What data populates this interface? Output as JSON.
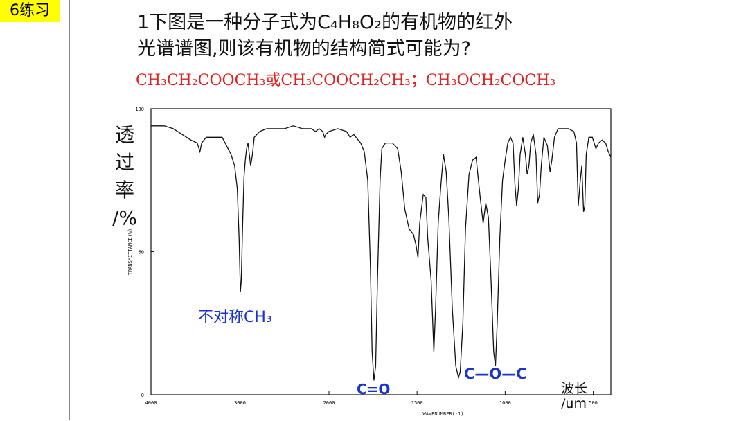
{
  "slide": {
    "tag": "6练习",
    "question_line1": "1下图是一种分子式为C₄H₈O₂的有机物的红外",
    "question_line2": "光谱谱图,则该有机物的结构简式可能为?",
    "answer": "CH₃CH₂COOCH₃或CH₃COOCH₂CH₃；CH₃OCH₂COCH₃",
    "y_label_cn": [
      "透",
      "过",
      "率",
      "/%"
    ],
    "x_label_cn": [
      "波长",
      "/um"
    ]
  },
  "annotations": {
    "ch3": "不对称CH₃",
    "c_eq_o": "C=O",
    "c_o_c": "C—O—C"
  },
  "chart_data": {
    "type": "line",
    "xlabel": "WAVENUMBER(-1)",
    "ylabel": "TRANSMITTANCE(%)",
    "xlim": [
      4000,
      400
    ],
    "ylim": [
      0,
      100
    ],
    "x_ticks": [
      4000,
      3000,
      2000,
      1500,
      1000,
      500
    ],
    "y_ticks": [
      0,
      50,
      100
    ],
    "grid": false,
    "series": [
      {
        "values": [
          [
            4000,
            94
          ],
          [
            3850,
            94
          ],
          [
            3750,
            93
          ],
          [
            3650,
            91
          ],
          [
            3550,
            89
          ],
          [
            3480,
            88
          ],
          [
            3450,
            85
          ],
          [
            3430,
            88
          ],
          [
            3380,
            90
          ],
          [
            3300,
            90
          ],
          [
            3200,
            90
          ],
          [
            3150,
            87
          ],
          [
            3100,
            84
          ],
          [
            3060,
            80
          ],
          [
            3030,
            72
          ],
          [
            3010,
            55
          ],
          [
            2995,
            36
          ],
          [
            2985,
            40
          ],
          [
            2970,
            60
          ],
          [
            2955,
            76
          ],
          [
            2940,
            82
          ],
          [
            2925,
            86
          ],
          [
            2910,
            88
          ],
          [
            2880,
            80
          ],
          [
            2860,
            84
          ],
          [
            2840,
            90
          ],
          [
            2780,
            92
          ],
          [
            2700,
            93
          ],
          [
            2600,
            93
          ],
          [
            2500,
            93
          ],
          [
            2400,
            94
          ],
          [
            2300,
            93
          ],
          [
            2200,
            93
          ],
          [
            2150,
            92
          ],
          [
            2110,
            93
          ],
          [
            2070,
            92
          ],
          [
            2050,
            90
          ],
          [
            2035,
            91
          ],
          [
            2000,
            92
          ],
          [
            1950,
            93
          ],
          [
            1900,
            92
          ],
          [
            1880,
            90
          ],
          [
            1860,
            91
          ],
          [
            1820,
            88
          ],
          [
            1800,
            85
          ],
          [
            1780,
            75
          ],
          [
            1765,
            45
          ],
          [
            1755,
            15
          ],
          [
            1745,
            5
          ],
          [
            1735,
            10
          ],
          [
            1725,
            40
          ],
          [
            1710,
            75
          ],
          [
            1700,
            86
          ],
          [
            1680,
            88
          ],
          [
            1640,
            88
          ],
          [
            1610,
            86
          ],
          [
            1590,
            78
          ],
          [
            1570,
            65
          ],
          [
            1545,
            58
          ],
          [
            1520,
            56
          ],
          [
            1505,
            52
          ],
          [
            1495,
            48
          ],
          [
            1485,
            60
          ],
          [
            1465,
            70
          ],
          [
            1450,
            69
          ],
          [
            1440,
            55
          ],
          [
            1420,
            40
          ],
          [
            1405,
            15
          ],
          [
            1395,
            30
          ],
          [
            1380,
            60
          ],
          [
            1365,
            73
          ],
          [
            1350,
            84
          ],
          [
            1335,
            78
          ],
          [
            1320,
            62
          ],
          [
            1300,
            30
          ],
          [
            1280,
            10
          ],
          [
            1265,
            6
          ],
          [
            1255,
            8
          ],
          [
            1240,
            25
          ],
          [
            1225,
            58
          ],
          [
            1205,
            77
          ],
          [
            1185,
            82
          ],
          [
            1165,
            83
          ],
          [
            1150,
            74
          ],
          [
            1140,
            68
          ],
          [
            1125,
            60
          ],
          [
            1110,
            67
          ],
          [
            1095,
            62
          ],
          [
            1080,
            40
          ],
          [
            1065,
            15
          ],
          [
            1055,
            10
          ],
          [
            1045,
            25
          ],
          [
            1030,
            55
          ],
          [
            1015,
            75
          ],
          [
            1000,
            82
          ],
          [
            985,
            88
          ],
          [
            970,
            90
          ],
          [
            955,
            88
          ],
          [
            945,
            74
          ],
          [
            935,
            66
          ],
          [
            925,
            72
          ],
          [
            915,
            84
          ],
          [
            900,
            90
          ],
          [
            885,
            84
          ],
          [
            875,
            77
          ],
          [
            865,
            80
          ],
          [
            855,
            88
          ],
          [
            840,
            91
          ],
          [
            825,
            84
          ],
          [
            815,
            67
          ],
          [
            805,
            70
          ],
          [
            795,
            80
          ],
          [
            780,
            90
          ],
          [
            760,
            87
          ],
          [
            745,
            78
          ],
          [
            735,
            82
          ],
          [
            720,
            90
          ],
          [
            700,
            93
          ],
          [
            670,
            93
          ],
          [
            640,
            93
          ],
          [
            610,
            92
          ],
          [
            595,
            88
          ],
          [
            585,
            66
          ],
          [
            575,
            74
          ],
          [
            565,
            80
          ],
          [
            555,
            64
          ],
          [
            548,
            66
          ],
          [
            540,
            84
          ],
          [
            525,
            90
          ],
          [
            505,
            90
          ],
          [
            485,
            86
          ],
          [
            470,
            88
          ],
          [
            450,
            89
          ],
          [
            430,
            88
          ],
          [
            415,
            85
          ],
          [
            400,
            83
          ]
        ]
      }
    ]
  }
}
